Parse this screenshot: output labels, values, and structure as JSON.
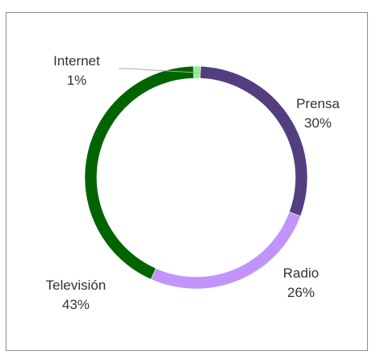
{
  "chart_data": {
    "type": "pie",
    "variant": "donut",
    "title": "",
    "legend": "none",
    "categories": [
      "Prensa",
      "Radio",
      "Televisión",
      "Internet"
    ],
    "values": [
      30,
      26,
      43,
      1
    ],
    "colors": [
      "#533e7f",
      "#c194fc",
      "#006400",
      "#90ee90"
    ],
    "labels": [
      {
        "name": "Prensa",
        "percent": "30%"
      },
      {
        "name": "Radio",
        "percent": "26%"
      },
      {
        "name": "Televisión",
        "percent": "43%"
      },
      {
        "name": "Internet",
        "percent": "1%"
      }
    ]
  }
}
